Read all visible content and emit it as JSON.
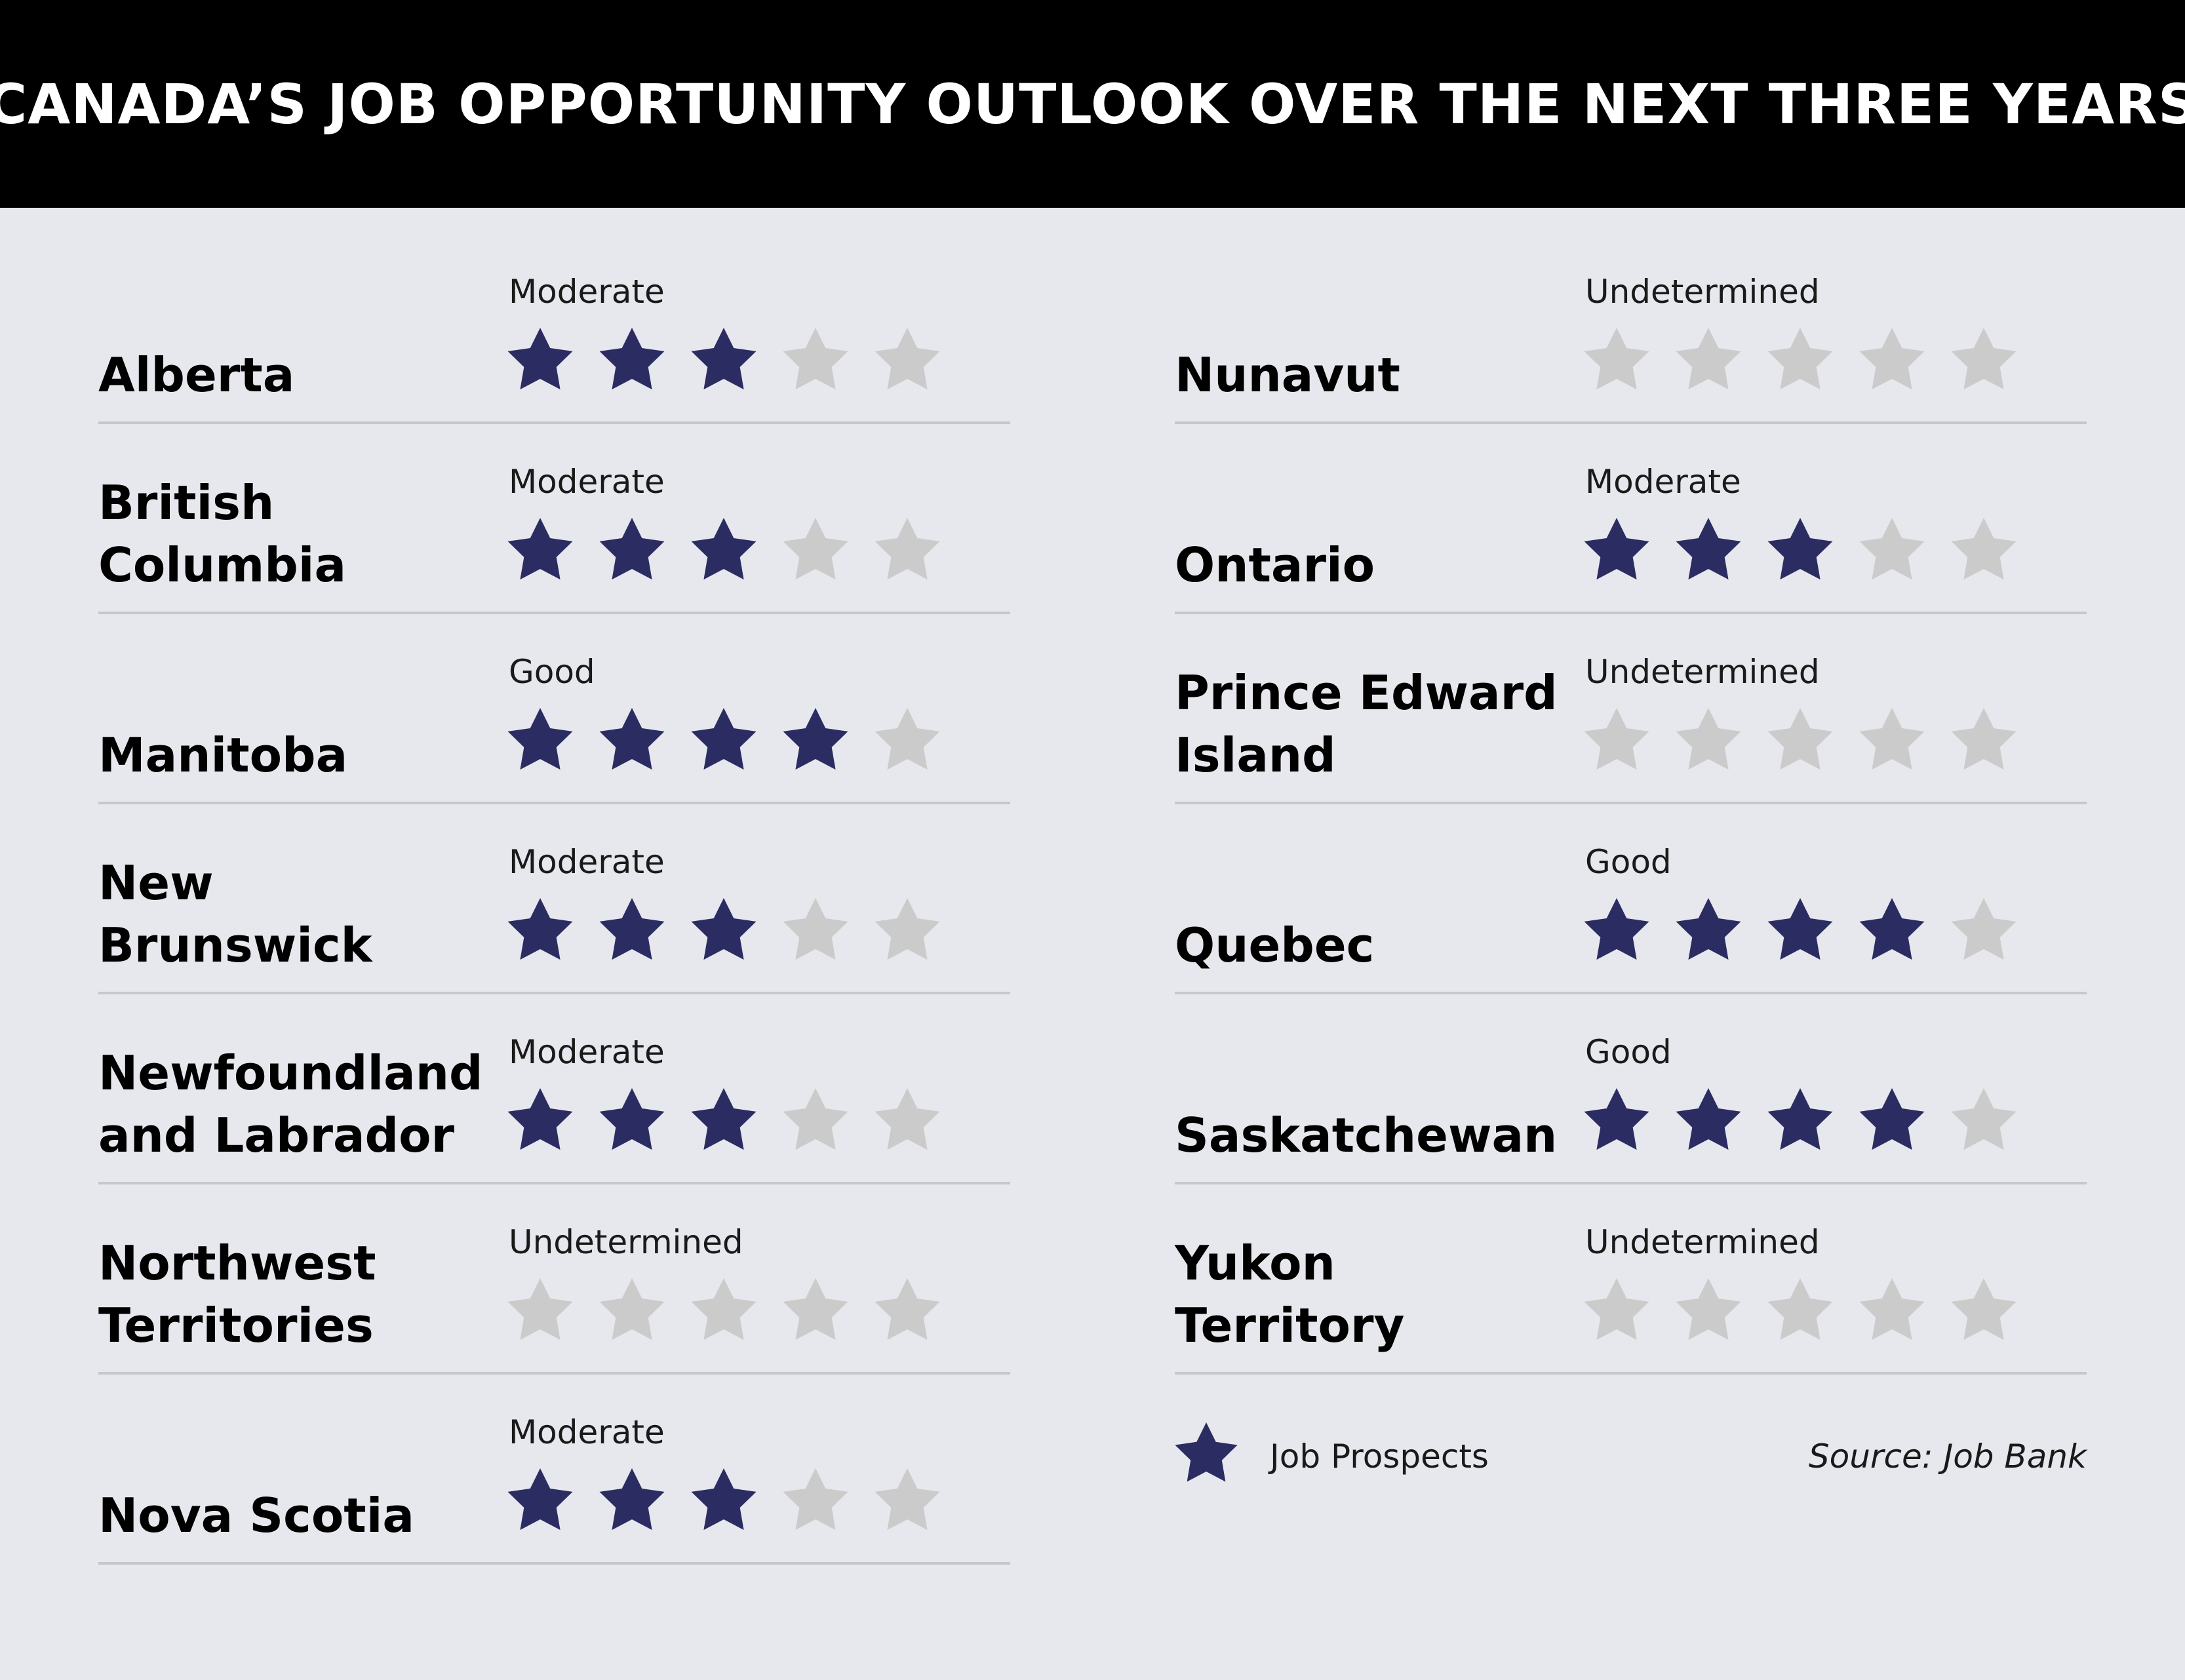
{
  "title": "CANADA’S JOB OPPORTUNITY OUTLOOK OVER THE NEXT THREE YEARS",
  "colors": {
    "filled_star": "#2b2c62",
    "empty_star": "#cbcbcb",
    "background": "#e7e8ed",
    "header_background": "#000000",
    "divider": "#c6c6cb"
  },
  "chart_data": {
    "type": "table",
    "max_rating": 5,
    "rows": [
      {
        "province": [
          "Alberta"
        ],
        "outlook": "Moderate",
        "stars": 3
      },
      {
        "province": [
          "British",
          "Columbia"
        ],
        "outlook": "Moderate",
        "stars": 3
      },
      {
        "province": [
          "Manitoba"
        ],
        "outlook": "Good",
        "stars": 4
      },
      {
        "province": [
          "New",
          "Brunswick"
        ],
        "outlook": "Moderate",
        "stars": 3
      },
      {
        "province": [
          "Newfoundland",
          "and Labrador"
        ],
        "outlook": "Moderate",
        "stars": 3
      },
      {
        "province": [
          "Northwest",
          "Territories"
        ],
        "outlook": "Undetermined",
        "stars": 0
      },
      {
        "province": [
          "Nova Scotia"
        ],
        "outlook": "Moderate",
        "stars": 3
      },
      {
        "province": [
          "Nunavut"
        ],
        "outlook": "Undetermined",
        "stars": 0
      },
      {
        "province": [
          "Ontario"
        ],
        "outlook": "Moderate",
        "stars": 3
      },
      {
        "province": [
          "Prince Edward",
          "Island"
        ],
        "outlook": "Undetermined",
        "stars": 0
      },
      {
        "province": [
          "Quebec"
        ],
        "outlook": "Good",
        "stars": 4
      },
      {
        "province": [
          "Saskatchewan"
        ],
        "outlook": "Good",
        "stars": 4
      },
      {
        "province": [
          "Yukon",
          "Territory"
        ],
        "outlook": "Undetermined",
        "stars": 0
      }
    ],
    "legend": {
      "label": "Job Prospects",
      "icon": "star-icon"
    },
    "source": "Source: Job Bank"
  }
}
